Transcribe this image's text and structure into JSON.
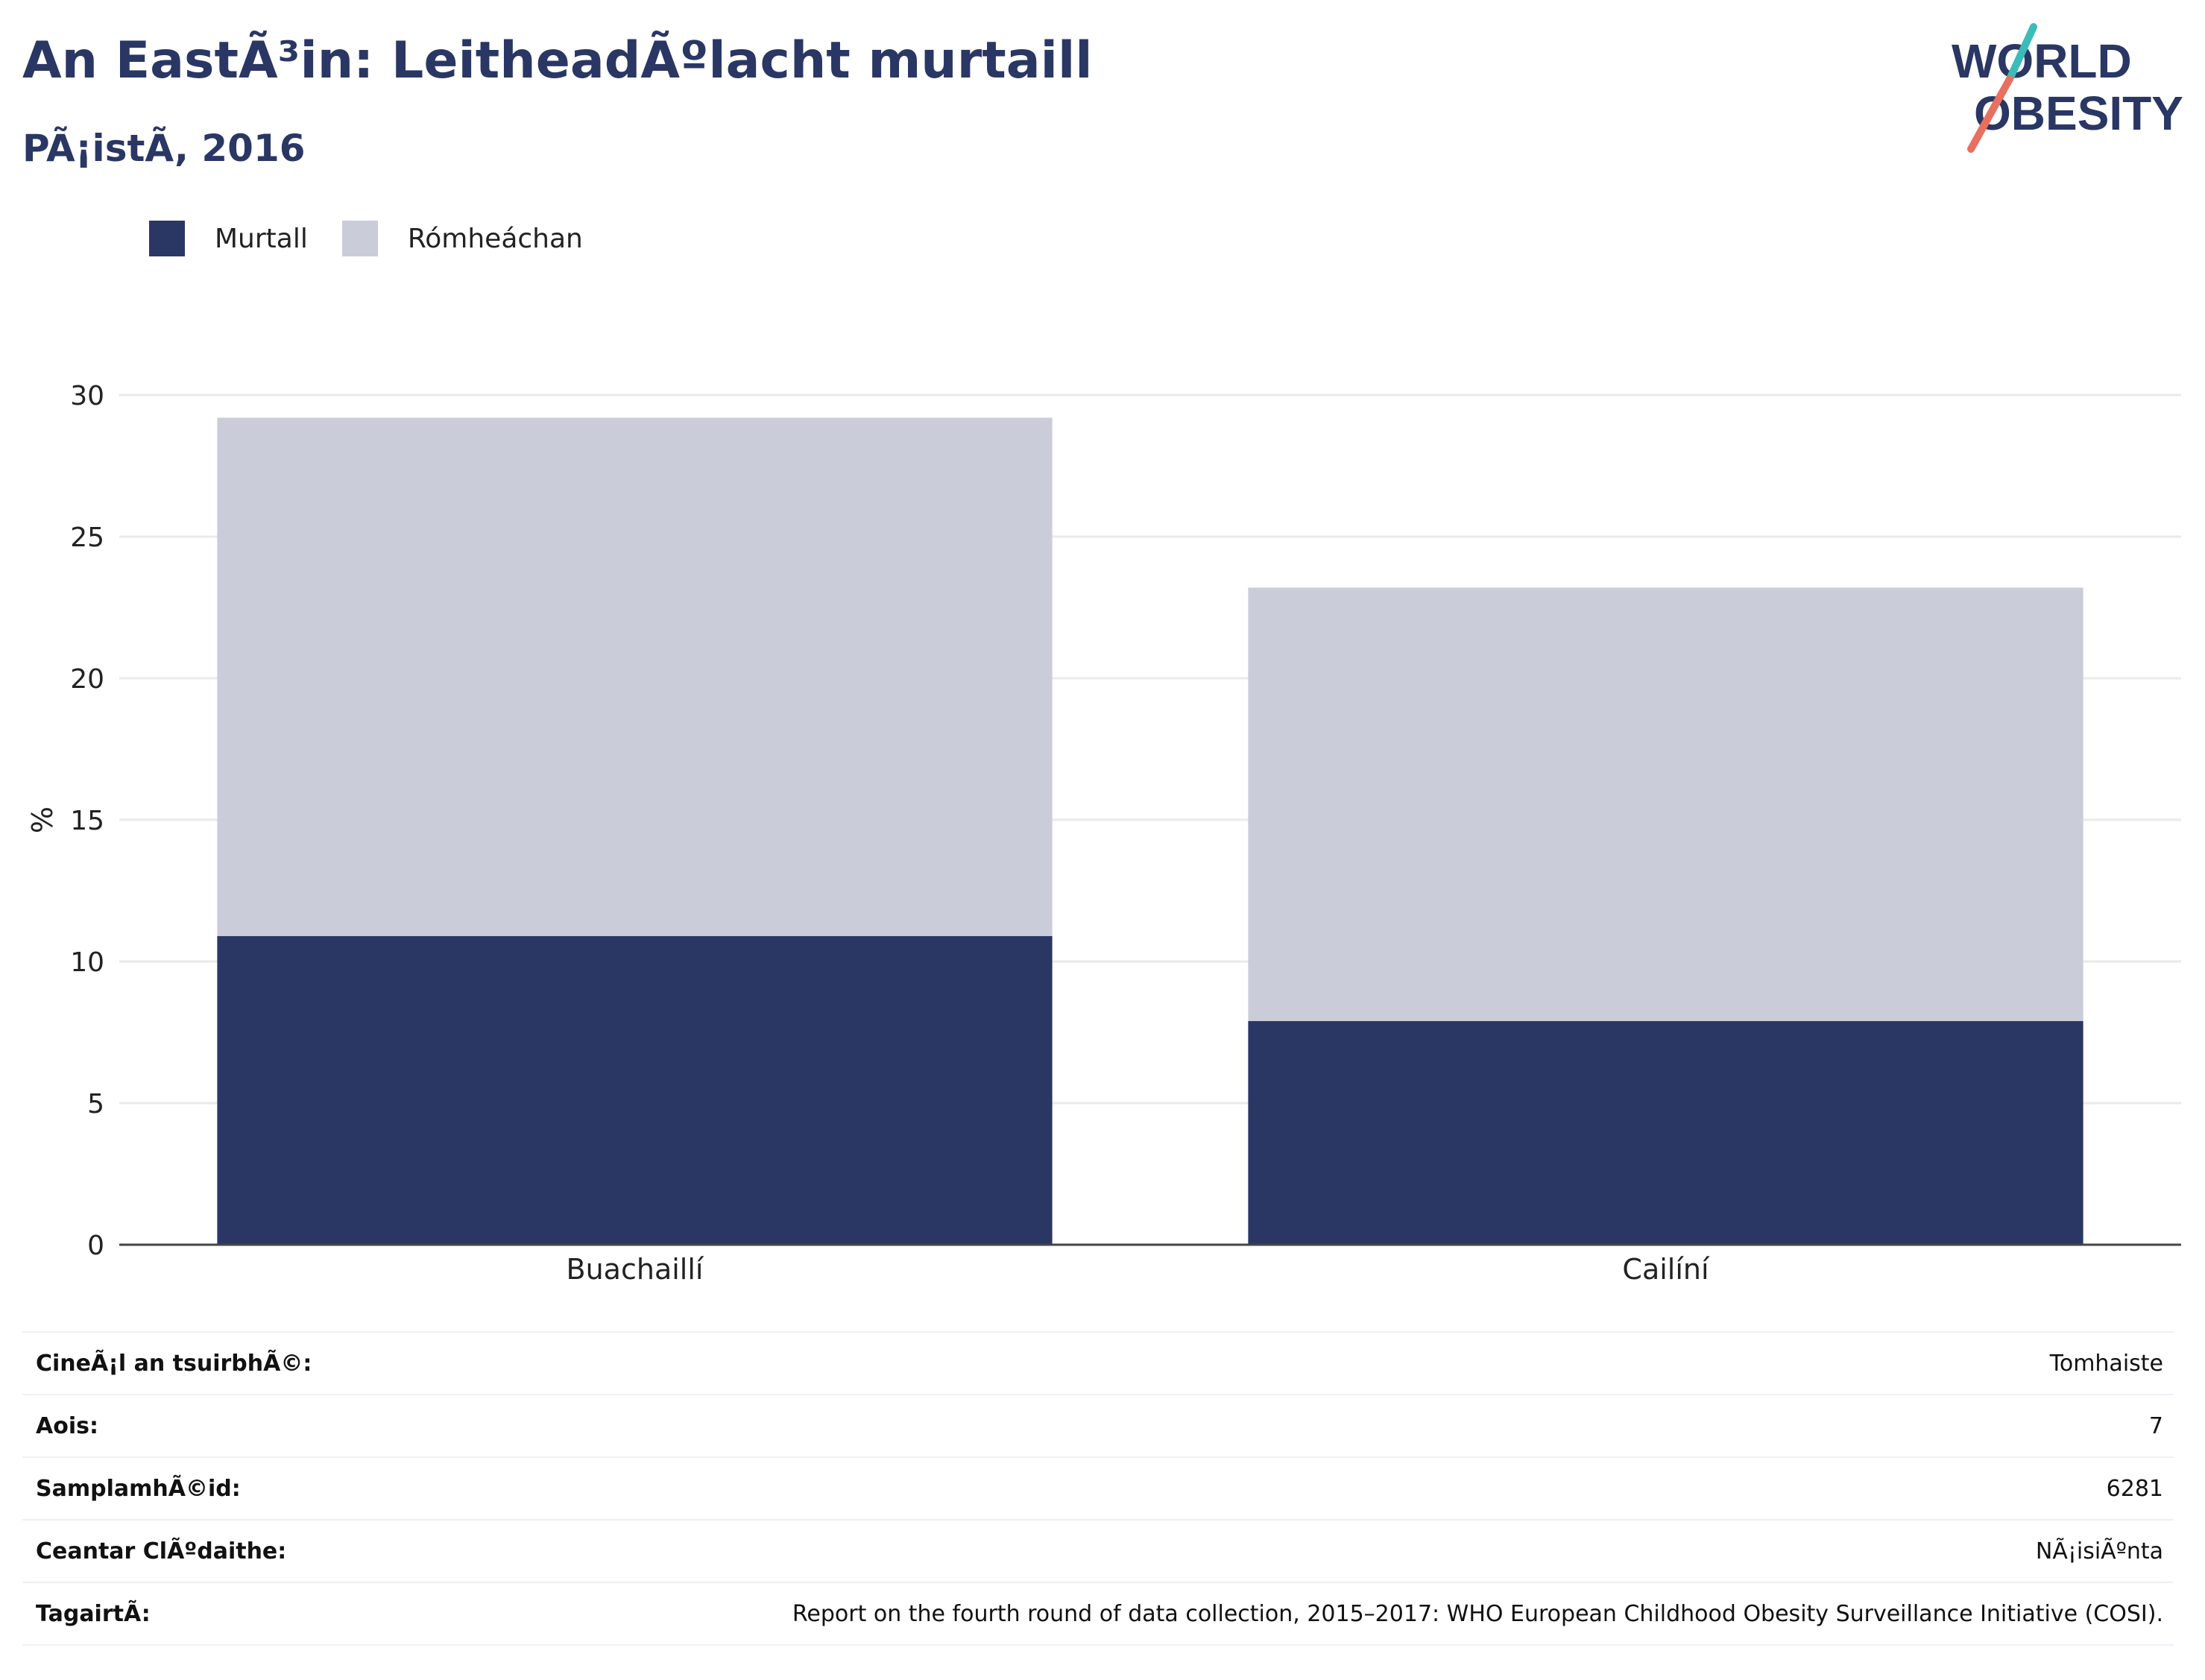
{
  "title": "An EastÃ³in: LeitheadÃºlacht murtaill",
  "subtitle": "PÃ¡istÃ, 2016",
  "logo": {
    "line1": "WORLD",
    "line2": "OBESITY"
  },
  "colors": {
    "murtall": "#2a3764",
    "romheachan": "#cacdd9",
    "teal": "#3bbcb8",
    "coral": "#e8705f"
  },
  "chart_data": {
    "type": "bar",
    "stacked": true,
    "categories": [
      "Buachaillí",
      "Cailíní"
    ],
    "series": [
      {
        "name": "Murtall",
        "values": [
          10.9,
          7.9
        ]
      },
      {
        "name": "Rómheáchan",
        "values": [
          18.3,
          15.3
        ]
      }
    ],
    "ylabel": "%",
    "ylim": [
      0,
      30
    ],
    "yticks": [
      0,
      5,
      10,
      15,
      20,
      25,
      30
    ],
    "grid": true,
    "legend": "top-left"
  },
  "info_table": [
    {
      "label": "CineÃ¡l an tsuirbhÃ©:",
      "value": "Tomhaiste"
    },
    {
      "label": "Aois:",
      "value": "7"
    },
    {
      "label": "SamplamhÃ©id:",
      "value": "6281"
    },
    {
      "label": "Ceantar ClÃºdaithe:",
      "value": "NÃ¡isiÃºnta"
    },
    {
      "label": "TagairtÃ:",
      "value": "Report on the fourth round of data collection, 2015–2017: WHO European Childhood Obesity Surveillance Initiative (COSI)."
    }
  ]
}
